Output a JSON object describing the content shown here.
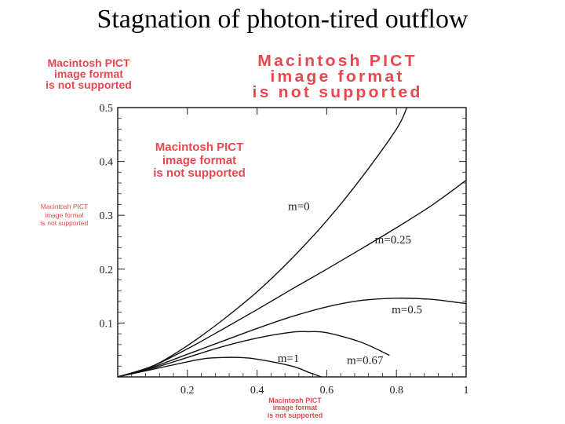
{
  "title": "Stagnation of photon-tired outflow",
  "placeholders": [
    [
      "Macintosh PICT",
      "image format",
      "is not supported"
    ],
    [
      "Macintosh PICT",
      "image format",
      "is not supported"
    ],
    [
      "Macintosh PICT",
      "image format",
      "is not supported"
    ],
    [
      "Macintosh PICT",
      "image format",
      "is not supported"
    ],
    [
      "Macintosh PICT",
      "image format",
      "is not supported"
    ]
  ],
  "colors": {
    "placeholder_text": "#e8474e",
    "curve": "#111111",
    "frame": "#222222"
  },
  "chart_data": {
    "type": "line",
    "title": "",
    "xlabel": "",
    "ylabel": "",
    "xlim": [
      0,
      1
    ],
    "ylim": [
      0,
      0.5
    ],
    "x_ticks": [
      0.2,
      0.4,
      0.6,
      0.8,
      1
    ],
    "x_tick_labels": [
      "0.2",
      "0.4",
      "0.6",
      "0.8",
      "1"
    ],
    "y_ticks": [
      0.1,
      0.2,
      0.3,
      0.4,
      0.5
    ],
    "y_tick_labels": [
      "0.1",
      "0.2",
      "0.3",
      "0.4",
      "0.5"
    ],
    "series": [
      {
        "name": "m=0",
        "label": "m=0",
        "x": [
          0,
          0.1,
          0.2,
          0.3,
          0.4,
          0.5,
          0.6,
          0.7,
          0.8,
          0.83
        ],
        "y": [
          0,
          0.02,
          0.058,
          0.105,
          0.158,
          0.22,
          0.29,
          0.37,
          0.46,
          0.5
        ]
      },
      {
        "name": "m=0.25",
        "label": "m=0.25",
        "x": [
          0,
          0.1,
          0.2,
          0.3,
          0.4,
          0.5,
          0.6,
          0.7,
          0.8,
          0.9,
          1.0
        ],
        "y": [
          0,
          0.02,
          0.052,
          0.088,
          0.125,
          0.163,
          0.2,
          0.238,
          0.277,
          0.318,
          0.365
        ]
      },
      {
        "name": "m=0.5",
        "label": "m=0.5",
        "x": [
          0,
          0.1,
          0.2,
          0.3,
          0.4,
          0.5,
          0.6,
          0.7,
          0.8,
          0.9,
          1.0
        ],
        "y": [
          0,
          0.018,
          0.042,
          0.066,
          0.09,
          0.112,
          0.13,
          0.142,
          0.146,
          0.144,
          0.136
        ]
      },
      {
        "name": "m=0.67",
        "label": "m=0.67",
        "x": [
          0,
          0.1,
          0.2,
          0.3,
          0.4,
          0.5,
          0.55,
          0.6,
          0.7,
          0.78
        ],
        "y": [
          0,
          0.016,
          0.036,
          0.056,
          0.072,
          0.083,
          0.084,
          0.082,
          0.064,
          0.04
        ]
      },
      {
        "name": "m=1",
        "label": "m=1",
        "x": [
          0,
          0.1,
          0.2,
          0.25,
          0.3,
          0.35,
          0.4,
          0.5,
          0.55,
          0.585
        ],
        "y": [
          0,
          0.014,
          0.028,
          0.034,
          0.036,
          0.036,
          0.033,
          0.02,
          0.008,
          0
        ]
      }
    ]
  }
}
